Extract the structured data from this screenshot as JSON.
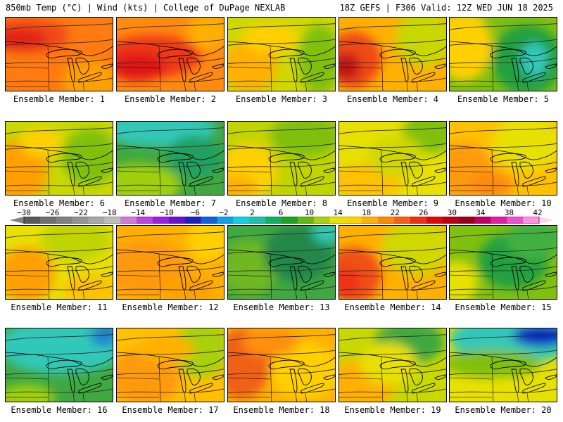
{
  "header": {
    "left": "850mb Temp (°C) | Wind (kts) | College of DuPage NEXLAB",
    "right": "18Z GEFS | F306 Valid: 12Z WED JUN 18 2025"
  },
  "colorbar": {
    "labels": [
      "−30",
      "−26",
      "−22",
      "−18",
      "−14",
      "−10",
      "−6",
      "−2",
      "2",
      "6",
      "10",
      "14",
      "18",
      "22",
      "26",
      "30",
      "34",
      "38",
      "42"
    ],
    "colors": [
      "#5a5a5a",
      "#6e6e6e",
      "#808080",
      "#949494",
      "#a8a8a8",
      "#bdbdbd",
      "#d07ad8",
      "#c040e0",
      "#9a20e0",
      "#6a10d0",
      "#2020c0",
      "#1060e0",
      "#10a0e8",
      "#10d0e0",
      "#20c0b0",
      "#10b060",
      "#20a020",
      "#60b810",
      "#a8d010",
      "#e8e000",
      "#ffd000",
      "#ffb000",
      "#ff8800",
      "#f86010",
      "#f03010",
      "#e00808",
      "#c00010",
      "#980018",
      "#c00060",
      "#e020a0",
      "#f050d0",
      "#ff90e8"
    ]
  },
  "panels": [
    {
      "label": "Ensemble Member: 1",
      "base": "#ff7a10",
      "blobs": [
        [
          "#f04818",
          30,
          26,
          60,
          24
        ],
        [
          "#e02018",
          20,
          30,
          40,
          14
        ],
        [
          "#ffa000",
          120,
          90,
          40,
          30
        ]
      ]
    },
    {
      "label": "Ensemble Member: 2",
      "base": "#ff8a10",
      "blobs": [
        [
          "#f03818",
          50,
          55,
          70,
          30
        ],
        [
          "#e01818",
          30,
          70,
          40,
          20
        ],
        [
          "#ffb000",
          130,
          20,
          30,
          25
        ]
      ]
    },
    {
      "label": "Ensemble Member: 3",
      "base": "#d0d800",
      "blobs": [
        [
          "#ffb000",
          30,
          70,
          40,
          35
        ],
        [
          "#80c010",
          130,
          60,
          30,
          50
        ],
        [
          "#ffd000",
          60,
          30,
          40,
          20
        ]
      ]
    },
    {
      "label": "Ensemble Member: 4",
      "base": "#ffb000",
      "blobs": [
        [
          "#f04818",
          20,
          60,
          40,
          40
        ],
        [
          "#c01818",
          10,
          70,
          20,
          20
        ],
        [
          "#c8d800",
          120,
          30,
          40,
          40
        ]
      ]
    },
    {
      "label": "Ensemble Member: 5",
      "base": "#80c010",
      "blobs": [
        [
          "#20a040",
          110,
          60,
          50,
          50
        ],
        [
          "#30c8b8",
          120,
          60,
          20,
          25
        ],
        [
          "#ffd000",
          20,
          40,
          40,
          50
        ]
      ]
    },
    {
      "label": "Ensemble Member: 6",
      "base": "#c8d800",
      "blobs": [
        [
          "#ffa000",
          20,
          70,
          40,
          45
        ],
        [
          "#80c010",
          120,
          50,
          40,
          40
        ],
        [
          "#ffd000",
          50,
          30,
          30,
          20
        ]
      ]
    },
    {
      "label": "Ensemble Member: 7",
      "base": "#40a840",
      "blobs": [
        [
          "#30c8b8",
          60,
          10,
          80,
          25
        ],
        [
          "#a0d010",
          30,
          90,
          60,
          30
        ],
        [
          "#20a060",
          110,
          50,
          40,
          30
        ]
      ]
    },
    {
      "label": "Ensemble Member: 8",
      "base": "#c0d400",
      "blobs": [
        [
          "#ffd000",
          30,
          70,
          40,
          40
        ],
        [
          "#80c010",
          110,
          20,
          50,
          30
        ],
        [
          "#ffb000",
          10,
          95,
          30,
          20
        ]
      ]
    },
    {
      "label": "Ensemble Member: 9",
      "base": "#e8e000",
      "blobs": [
        [
          "#ffc000",
          40,
          85,
          50,
          25
        ],
        [
          "#80c010",
          130,
          15,
          40,
          30
        ],
        [
          "#d0d800",
          80,
          50,
          40,
          30
        ]
      ]
    },
    {
      "label": "Ensemble Member: 10",
      "base": "#ffc000",
      "blobs": [
        [
          "#ff9a10",
          20,
          70,
          40,
          40
        ],
        [
          "#e8e000",
          110,
          30,
          50,
          40
        ],
        [
          "#ff8a10",
          60,
          90,
          30,
          20
        ]
      ]
    },
    {
      "label": "Ensemble Member: 11",
      "base": "#e8e000",
      "blobs": [
        [
          "#ffa000",
          30,
          70,
          40,
          40
        ],
        [
          "#c0d400",
          100,
          20,
          50,
          30
        ],
        [
          "#ffc000",
          120,
          90,
          40,
          20
        ]
      ]
    },
    {
      "label": "Ensemble Member: 12",
      "base": "#ffb000",
      "blobs": [
        [
          "#ff9a10",
          40,
          60,
          60,
          40
        ],
        [
          "#ffd000",
          130,
          20,
          30,
          30
        ],
        [
          "#ffa000",
          100,
          90,
          40,
          20
        ]
      ]
    },
    {
      "label": "Ensemble Member: 13",
      "base": "#40a840",
      "blobs": [
        [
          "#70b820",
          30,
          60,
          40,
          40
        ],
        [
          "#208848",
          100,
          40,
          50,
          40
        ],
        [
          "#30c8b8",
          140,
          10,
          20,
          15
        ]
      ]
    },
    {
      "label": "Ensemble Member: 14",
      "base": "#ffb000",
      "blobs": [
        [
          "#f05018",
          20,
          70,
          40,
          40
        ],
        [
          "#d0d800",
          110,
          30,
          50,
          40
        ],
        [
          "#f03018",
          10,
          80,
          20,
          20
        ]
      ]
    },
    {
      "label": "Ensemble Member: 15",
      "base": "#80c010",
      "blobs": [
        [
          "#20a040",
          90,
          50,
          50,
          40
        ],
        [
          "#e8e000",
          10,
          80,
          30,
          30
        ],
        [
          "#40b040",
          120,
          20,
          40,
          30
        ]
      ]
    },
    {
      "label": "Ensemble Member: 16",
      "base": "#40a840",
      "blobs": [
        [
          "#30c8b8",
          80,
          25,
          90,
          40
        ],
        [
          "#2080d0",
          140,
          10,
          20,
          15
        ],
        [
          "#a0d010",
          30,
          100,
          40,
          20
        ]
      ]
    },
    {
      "label": "Ensemble Member: 17",
      "base": "#ffc000",
      "blobs": [
        [
          "#ff9a10",
          40,
          70,
          50,
          40
        ],
        [
          "#a8d010",
          120,
          30,
          40,
          40
        ],
        [
          "#ffb000",
          70,
          30,
          40,
          20
        ]
      ]
    },
    {
      "label": "Ensemble Member: 18",
      "base": "#ffb000",
      "blobs": [
        [
          "#f06018",
          20,
          50,
          40,
          50
        ],
        [
          "#ffd000",
          110,
          60,
          50,
          40
        ],
        [
          "#ff9010",
          60,
          20,
          40,
          20
        ]
      ]
    },
    {
      "label": "Ensemble Member: 19",
      "base": "#c8d800",
      "blobs": [
        [
          "#ffb000",
          30,
          80,
          50,
          35
        ],
        [
          "#40a840",
          100,
          20,
          50,
          30
        ],
        [
          "#e8e000",
          70,
          50,
          40,
          30
        ]
      ]
    },
    {
      "label": "Ensemble Member: 20",
      "base": "#e8e000",
      "blobs": [
        [
          "#30c8b8",
          90,
          15,
          90,
          35
        ],
        [
          "#1020c0",
          130,
          10,
          40,
          15
        ],
        [
          "#80c010",
          60,
          50,
          70,
          20
        ]
      ]
    }
  ]
}
